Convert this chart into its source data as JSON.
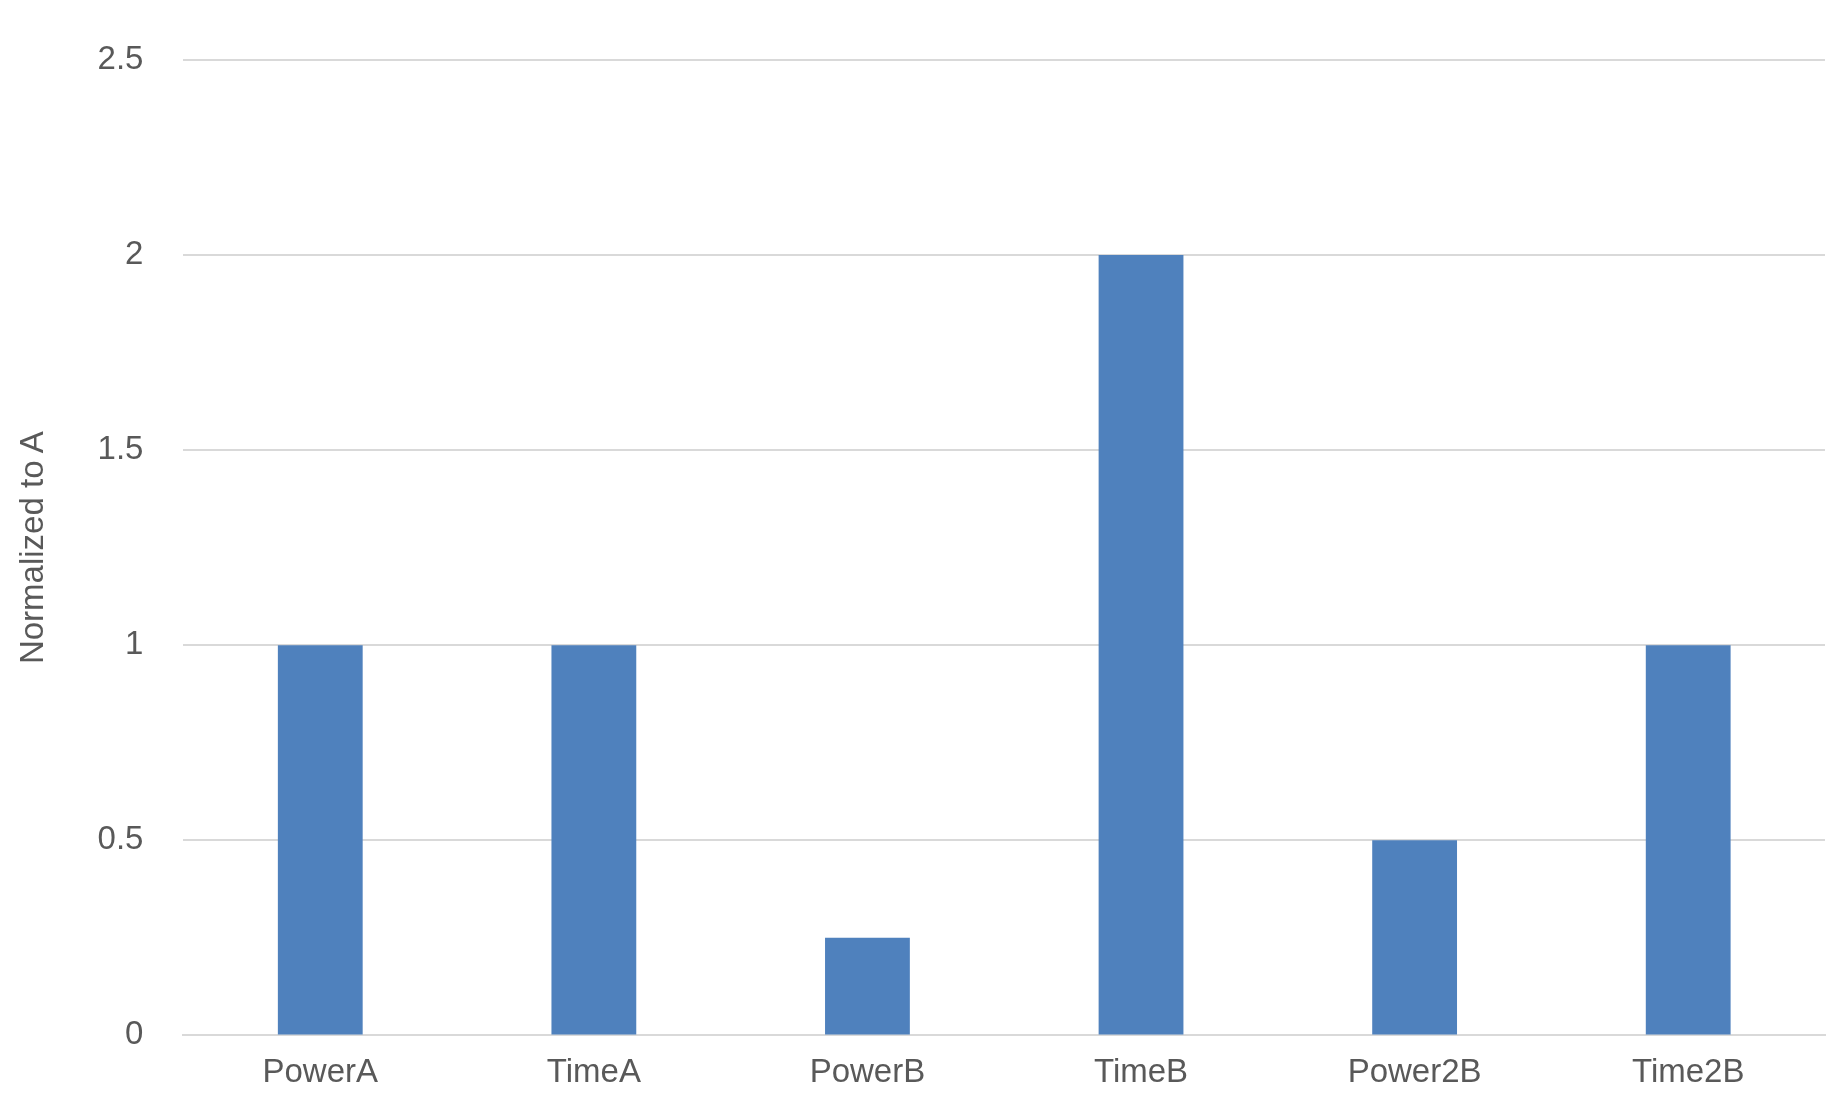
{
  "chart_data": {
    "type": "bar",
    "ylabel": "Normalized to A",
    "categories": [
      "PowerA",
      "TimeA",
      "PowerB",
      "TimeB",
      "Power2B",
      "Time2B"
    ],
    "values": [
      1,
      1,
      0.25,
      2,
      0.5,
      1
    ],
    "color": "#4f81bd",
    "ylim": [
      0,
      2.5
    ],
    "yticks": [
      0,
      0.5,
      1,
      1.5,
      2,
      2.5
    ],
    "grid": "y",
    "legend": false
  }
}
